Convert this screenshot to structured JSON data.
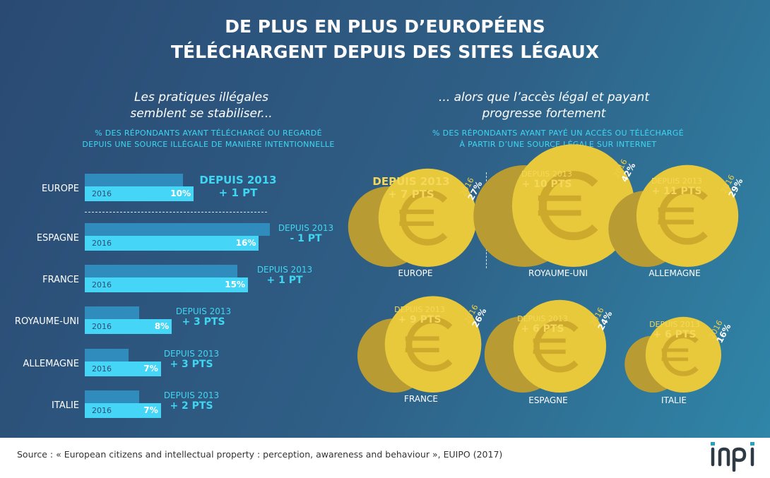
{
  "title": [
    "DE PLUS EN PLUS D’EUROPÉENS",
    "TÉLÉCHARGENT DEPUIS DES SITES LÉGAUX"
  ],
  "left": {
    "subtitle": [
      "Les pratiques illégales",
      "semblent se stabiliser..."
    ],
    "caption": [
      "% DES RÉPONDANTS AYANT TÉLÉCHARGÉ OU REGARDÉ",
      "DEPUIS UNE SOURCE ILLÉGALE DE MANIÈRE INTENTIONNELLE"
    ]
  },
  "right": {
    "subtitle": [
      "... alors que l’accès légal et payant",
      "progresse fortement"
    ],
    "caption": [
      "% DES RÉPONDANTS AYANT PAYÉ UN ACCÈS OU TÉLÉCHARGÉ",
      "À PARTIR D’UNE SOURCE LÉGALE SUR INTERNET"
    ]
  },
  "chart_data": [
    {
      "type": "bar",
      "orientation": "horizontal",
      "year_label": "2016",
      "categories": [
        "EUROPE",
        "ESPAGNE",
        "FRANCE",
        "ROYAUME-UNI",
        "ALLEMAGNE",
        "ITALIE"
      ],
      "values_2016": [
        10,
        16,
        15,
        8,
        7,
        7
      ],
      "values_2013": [
        9,
        17,
        14,
        5,
        4,
        5
      ],
      "value_labels": [
        "10%",
        "16%",
        "15%",
        "8%",
        "7%",
        "7%"
      ],
      "delta_label": "DEPUIS 2013",
      "deltas": [
        "+ 1 PT",
        "- 1 PT",
        "+ 1 PT",
        "+ 3 PTS",
        "+ 3 PTS",
        "+ 2 PTS"
      ]
    },
    {
      "type": "bubble",
      "year_label": "2016",
      "categories": [
        "EUROPE",
        "ROYAUME-UNI",
        "ALLEMAGNE",
        "FRANCE",
        "ESPAGNE",
        "ITALIE"
      ],
      "values_2016": [
        27,
        42,
        29,
        26,
        24,
        16
      ],
      "values_2013": [
        20,
        32,
        18,
        17,
        18,
        10
      ],
      "value_labels": [
        "27%",
        "42%",
        "29%",
        "26%",
        "24%",
        "16%"
      ],
      "delta_label": "DEPUIS 2013",
      "deltas": [
        "+ 7 PTS",
        "+ 10 PTS",
        "+ 11 PTS",
        "+ 9 PTS",
        "+ 6 PTS",
        "+ 6 PTS"
      ]
    }
  ],
  "colors": {
    "bar_2013": "#2f8cbc",
    "bar_2016": "#45d5f6",
    "coin_2013": "#b89c33",
    "coin_2016": "#e8c93c",
    "accent_cyan": "#40d6f2",
    "accent_gold": "#f5d85a"
  },
  "coin_icon": "euro-icon",
  "source": "Source : « European citizens and intellectual property : perception, awareness and behaviour », EUIPO (2017)",
  "logo": "inpi"
}
